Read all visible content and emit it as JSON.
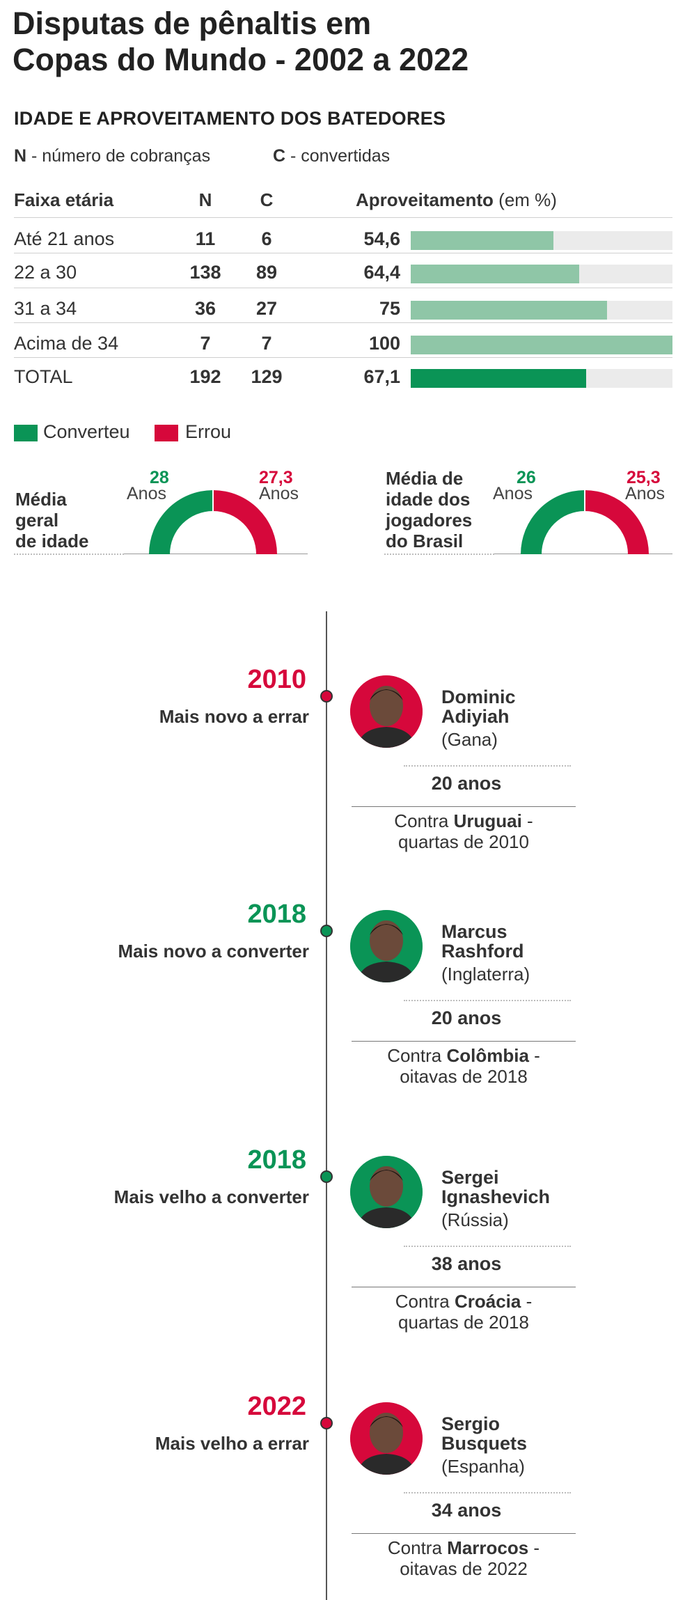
{
  "title_line1": "Disputas de pênaltis em",
  "title_line2": "Copas do Mundo - 2002 a 2022",
  "subtitle": "IDADE E APROVEITAMENTO DOS BATEDORES",
  "legend": {
    "n_key": "N",
    "n_text": " - número de cobranças",
    "c_key": "C",
    "c_text": " - convertidas"
  },
  "table": {
    "headers": {
      "age": "Faixa etária",
      "n": "N",
      "c": "C",
      "rate": "Aproveitamento",
      "rate_unit": "(em %)"
    },
    "rows": [
      {
        "label": "Até 21 anos",
        "n": "11",
        "c": "6",
        "rate": "54,6",
        "value": 54.6
      },
      {
        "label": "22 a 30",
        "n": "138",
        "c": "89",
        "rate": "64,4",
        "value": 64.4
      },
      {
        "label": "31 a 34",
        "n": "36",
        "c": "27",
        "rate": "75",
        "value": 75
      },
      {
        "label": "Acima de 34",
        "n": "7",
        "c": "7",
        "rate": "100",
        "value": 100
      },
      {
        "label": "TOTAL",
        "n": "192",
        "c": "129",
        "rate": "67,1",
        "value": 67.1
      }
    ]
  },
  "color_legend": {
    "converted": "Converteu",
    "missed": "Errou",
    "green": "#0a9456",
    "red": "#d6083b"
  },
  "donut_general": {
    "label_l1": "Média",
    "label_l2": "geral",
    "label_l3": "de idade",
    "green_age": "28",
    "red_age": "27,3",
    "unit": "Anos"
  },
  "donut_brazil": {
    "label_l1": "Média de",
    "label_l2": "idade dos",
    "label_l3": "jogadores",
    "label_l4": "do Brasil",
    "green_age": "26",
    "red_age": "25,3",
    "unit": "Anos"
  },
  "timeline": [
    {
      "year": "2010",
      "caption": "Mais novo a errar",
      "name_l1": "Dominic",
      "name_l2": "Adiyiah",
      "country": "(Gana)",
      "age": "20 anos",
      "match_pre": "Contra ",
      "opponent": "Uruguai",
      "match_post": " -",
      "stage": "quartas de 2010",
      "color": "#d6083b",
      "avatar_icon": "player-photo-icon"
    },
    {
      "year": "2018",
      "caption": "Mais novo a converter",
      "name_l1": "Marcus",
      "name_l2": "Rashford",
      "country": "(Inglaterra)",
      "age": "20 anos",
      "match_pre": "Contra ",
      "opponent": "Colômbia",
      "match_post": " -",
      "stage": "oitavas de 2018",
      "color": "#0a9456",
      "avatar_icon": "player-photo-icon"
    },
    {
      "year": "2018",
      "caption": "Mais velho a converter",
      "name_l1": "Sergei",
      "name_l2": "Ignashevich",
      "country": "(Rússia)",
      "age": "38 anos",
      "match_pre": "Contra ",
      "opponent": "Croácia",
      "match_post": " -",
      "stage": "quartas de 2018",
      "color": "#0a9456",
      "avatar_icon": "player-photo-icon"
    },
    {
      "year": "2022",
      "caption": "Mais velho a errar",
      "name_l1": "Sergio",
      "name_l2": "Busquets",
      "country": "(Espanha)",
      "age": "34 anos",
      "match_pre": "Contra ",
      "opponent": "Marrocos",
      "match_post": " -",
      "stage": "oitavas de 2022",
      "color": "#d6083b",
      "avatar_icon": "player-photo-icon"
    }
  ]
}
